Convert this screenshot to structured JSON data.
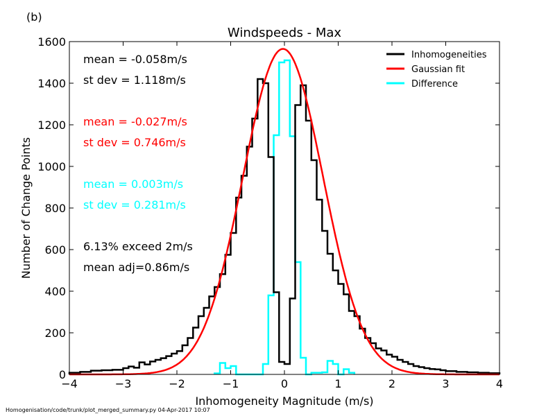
{
  "panel_label": "(b)",
  "footer": "Homogenisation/code/trunk/plot_merged_summary.py   04-Apr-2017 10:07",
  "chart_data": {
    "type": "line",
    "title": "Windspeeds - Max",
    "xlabel": "Inhomogeneity Magnitude (m/s)",
    "ylabel": "Number of Change Points",
    "xlim": [
      -4,
      4
    ],
    "ylim": [
      0,
      1600
    ],
    "xticks": [
      -4,
      -3,
      -2,
      -1,
      0,
      1,
      2,
      3,
      4
    ],
    "yticks": [
      0,
      200,
      400,
      600,
      800,
      1000,
      1200,
      1400,
      1600
    ],
    "x_tick_labels": [
      "−4",
      "−3",
      "−2",
      "−1",
      "0",
      "1",
      "2",
      "3",
      "4"
    ],
    "y_tick_labels": [
      "0",
      "200",
      "400",
      "600",
      "800",
      "1000",
      "1200",
      "1400",
      "1600"
    ],
    "grid": false,
    "legend_position": "top-right",
    "series": [
      {
        "name": "Inhomogeneities",
        "color": "#000000",
        "style": "step",
        "bin_edges": [
          -4.0,
          -3.8,
          -3.6,
          -3.4,
          -3.2,
          -3.0,
          -2.9,
          -2.8,
          -2.7,
          -2.6,
          -2.5,
          -2.4,
          -2.3,
          -2.2,
          -2.1,
          -2.0,
          -1.9,
          -1.8,
          -1.7,
          -1.6,
          -1.5,
          -1.4,
          -1.3,
          -1.2,
          -1.1,
          -1.0,
          -0.9,
          -0.8,
          -0.7,
          -0.6,
          -0.5,
          -0.4,
          -0.3,
          -0.2,
          -0.1,
          0.0,
          0.1,
          0.2,
          0.3,
          0.4,
          0.5,
          0.6,
          0.7,
          0.8,
          0.9,
          1.0,
          1.1,
          1.2,
          1.3,
          1.4,
          1.5,
          1.6,
          1.7,
          1.8,
          1.9,
          2.0,
          2.1,
          2.2,
          2.3,
          2.4,
          2.5,
          2.6,
          2.7,
          2.8,
          2.9,
          3.0,
          3.2,
          3.4,
          3.6,
          3.8,
          4.0
        ],
        "values": [
          8,
          12,
          18,
          20,
          22,
          30,
          38,
          32,
          58,
          48,
          62,
          70,
          78,
          88,
          100,
          112,
          140,
          175,
          225,
          280,
          320,
          375,
          420,
          482,
          575,
          680,
          850,
          955,
          1095,
          1230,
          1420,
          1400,
          1045,
          395,
          60,
          50,
          365,
          1295,
          1390,
          1220,
          1030,
          840,
          690,
          580,
          500,
          435,
          385,
          305,
          280,
          220,
          175,
          150,
          125,
          115,
          95,
          85,
          70,
          60,
          50,
          40,
          35,
          30,
          26,
          24,
          20,
          16,
          12,
          10,
          8,
          6
        ]
      },
      {
        "name": "Gaussian fit",
        "color": "#ff0000",
        "style": "line",
        "mean": -0.027,
        "st_dev": 0.746,
        "peak": 1565
      },
      {
        "name": "Difference",
        "color": "#00ffff",
        "style": "step",
        "bin_edges": [
          -1.3,
          -1.2,
          -1.1,
          -1.0,
          -0.9,
          -0.4,
          -0.3,
          -0.2,
          -0.1,
          0.0,
          0.1,
          0.2,
          0.3,
          0.4,
          0.5,
          0.7,
          0.8,
          0.9,
          1.0,
          1.1,
          1.2,
          1.3
        ],
        "values": [
          5,
          55,
          30,
          40,
          0,
          50,
          380,
          1150,
          1500,
          1510,
          1145,
          540,
          80,
          0,
          8,
          10,
          65,
          50,
          0,
          25,
          8
        ]
      }
    ],
    "annotations": [
      {
        "text": "mean = -0.058m/s",
        "color": "#000000"
      },
      {
        "text": "st dev =  1.118m/s",
        "color": "#000000"
      },
      {
        "text": "mean = -0.027m/s",
        "color": "#ff0000"
      },
      {
        "text": "st dev =  0.746m/s",
        "color": "#ff0000"
      },
      {
        "text": "mean =  0.003m/s",
        "color": "#00ffff"
      },
      {
        "text": "st dev =  0.281m/s",
        "color": "#00ffff"
      },
      {
        "text": "6.13% exceed 2m/s",
        "color": "#000000"
      },
      {
        "text": "mean adj=0.86m/s",
        "color": "#000000"
      }
    ]
  }
}
